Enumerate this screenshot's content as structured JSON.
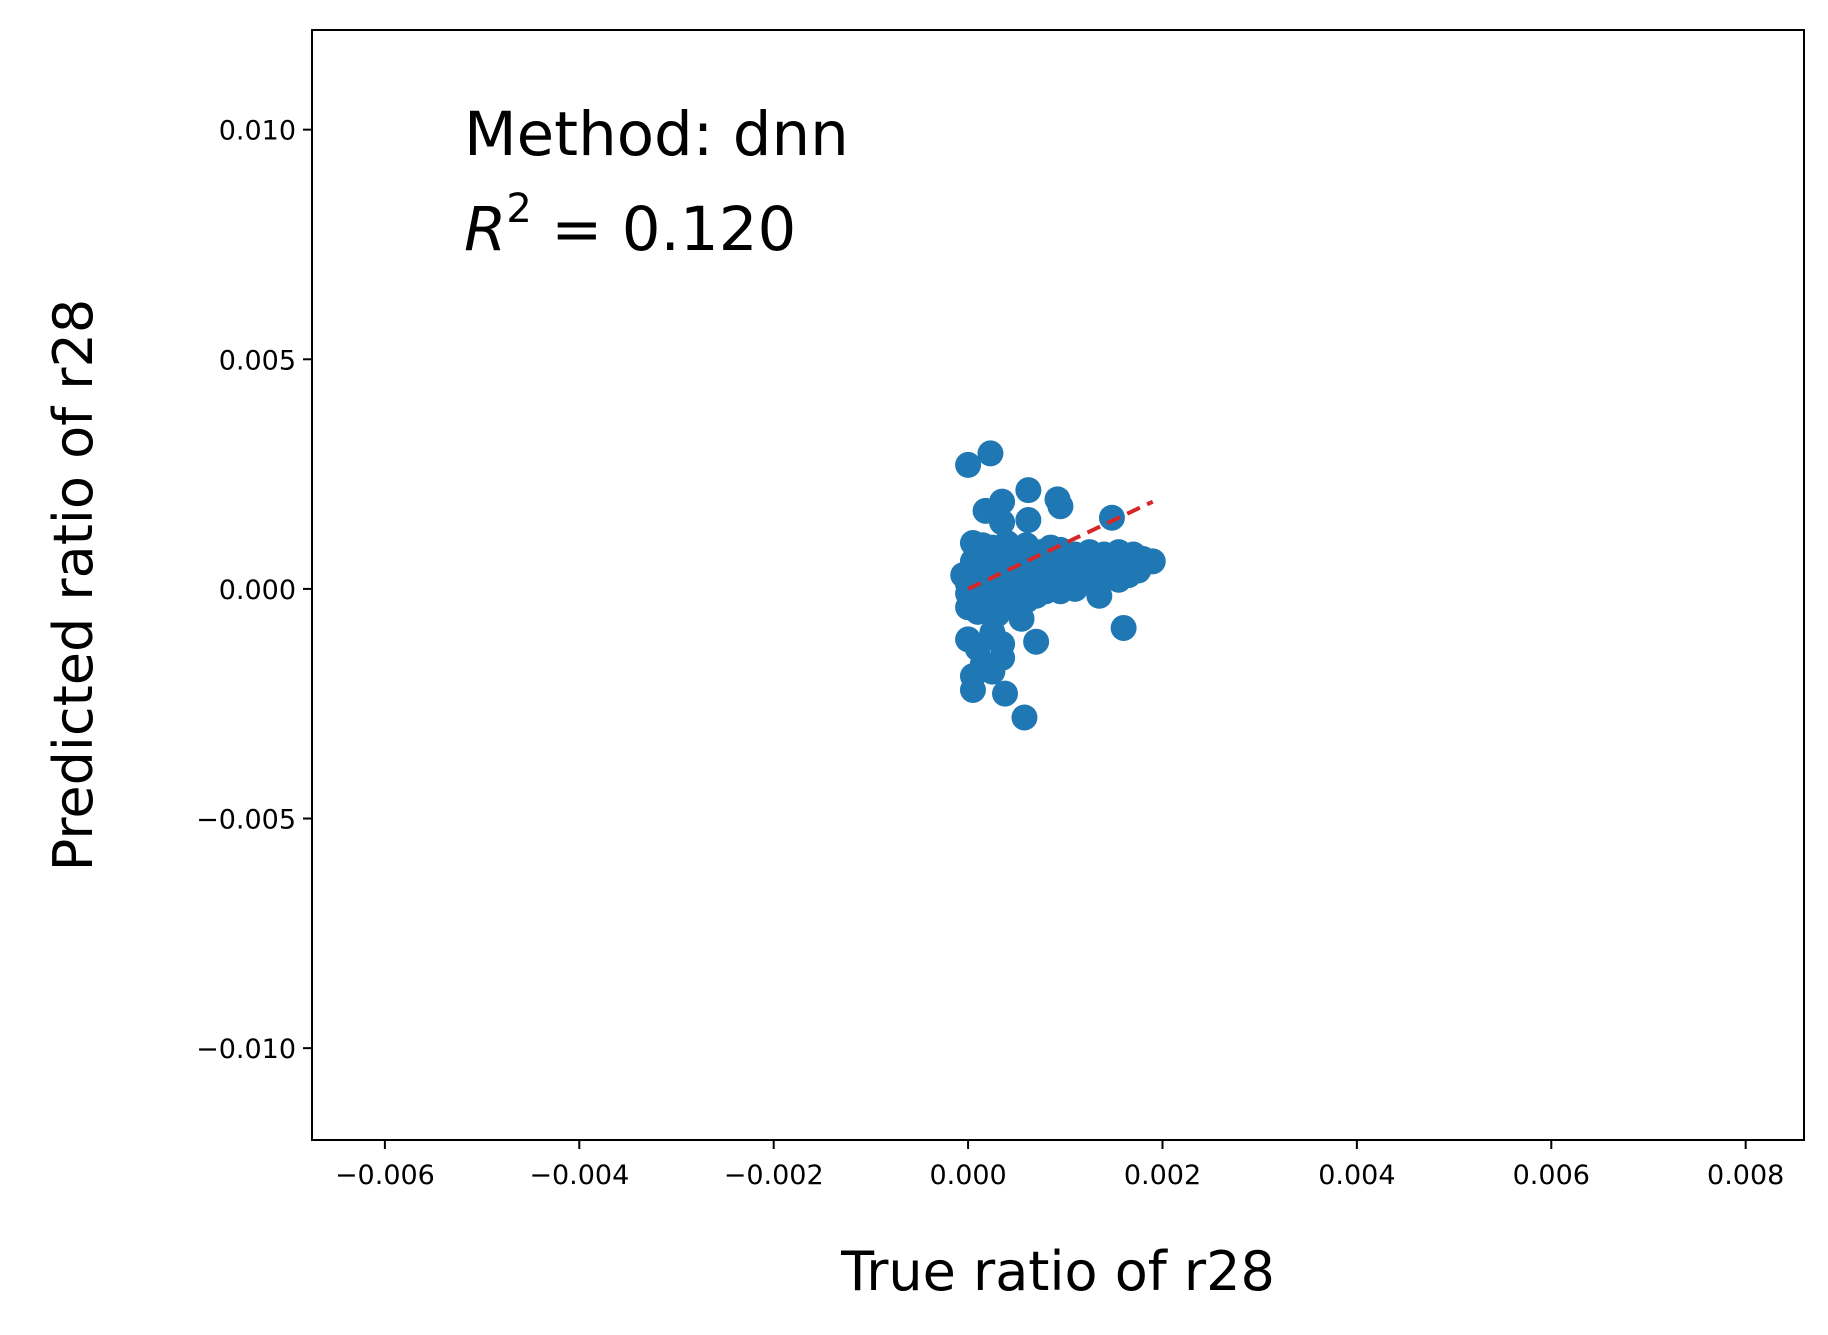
{
  "chart_data": {
    "type": "scatter",
    "annotation": {
      "method_line": "Method: dnn",
      "r2_symbol": "R",
      "r2_exponent": "2",
      "r2_value": " = 0.120"
    },
    "xlabel": "True ratio of r28",
    "ylabel": "Predicted ratio of r28",
    "xlim": [
      -0.00675,
      0.0086
    ],
    "ylim": [
      -0.012,
      0.01217
    ],
    "x_ticks": [
      {
        "value": -0.006,
        "label": "−0.006"
      },
      {
        "value": -0.004,
        "label": "−0.004"
      },
      {
        "value": -0.002,
        "label": "−0.002"
      },
      {
        "value": 0.0,
        "label": "0.000"
      },
      {
        "value": 0.002,
        "label": "0.002"
      },
      {
        "value": 0.004,
        "label": "0.004"
      },
      {
        "value": 0.006,
        "label": "0.006"
      },
      {
        "value": 0.008,
        "label": "0.008"
      }
    ],
    "y_ticks": [
      {
        "value": 0.01,
        "label": "0.010"
      },
      {
        "value": 0.005,
        "label": "0.005"
      },
      {
        "value": 0.0,
        "label": "0.000"
      },
      {
        "value": -0.005,
        "label": "−0.005"
      },
      {
        "value": -0.01,
        "label": "−0.010"
      }
    ],
    "grid": false,
    "series": [
      {
        "color": "#1f77b4",
        "points": [
          [
            0.0,
            0.0027
          ],
          [
            0.00023,
            0.00295
          ],
          [
            0.00035,
            0.0019
          ],
          [
            0.00018,
            0.0017
          ],
          [
            0.00035,
            0.00145
          ],
          [
            0.00062,
            0.00215
          ],
          [
            0.00062,
            0.0015
          ],
          [
            0.00092,
            0.00195
          ],
          [
            0.00095,
            0.0018
          ],
          [
            0.00148,
            0.00155
          ],
          [
            5e-05,
            0.001
          ],
          [
            0.00015,
            0.00095
          ],
          [
            0.00025,
            0.0009
          ],
          [
            0.0004,
            0.001
          ],
          [
            0.0005,
            0.00085
          ],
          [
            0.0006,
            0.00095
          ],
          [
            0.00075,
            0.0008
          ],
          [
            0.00085,
            0.0009
          ],
          [
            0.00095,
            0.00085
          ],
          [
            0.0011,
            0.00075
          ],
          [
            0.00125,
            0.0008
          ],
          [
            0.0014,
            0.00075
          ],
          [
            0.00155,
            0.0008
          ],
          [
            0.0017,
            0.00075
          ],
          [
            0.0018,
            0.00065
          ],
          [
            0.0019,
            0.0006
          ],
          [
            5e-05,
            0.0006
          ],
          [
            0.00015,
            0.0005
          ],
          [
            0.00025,
            0.00065
          ],
          [
            0.00035,
            0.00045
          ],
          [
            0.00045,
            0.0006
          ],
          [
            0.00055,
            0.0004
          ],
          [
            0.00065,
            0.00055
          ],
          [
            0.00075,
            0.0004
          ],
          [
            0.00085,
            0.00055
          ],
          [
            0.00095,
            0.0004
          ],
          [
            0.00105,
            0.00055
          ],
          [
            0.00115,
            0.00035
          ],
          [
            0.00125,
            0.0005
          ],
          [
            0.00135,
            0.00035
          ],
          [
            0.00145,
            0.0005
          ],
          [
            0.00155,
            0.00035
          ],
          [
            0.00165,
            0.0005
          ],
          [
            0.00175,
            0.0004
          ],
          [
            0.0016,
            0.0006
          ],
          [
            0.0014,
            0.00065
          ],
          [
            -5e-05,
            0.0003
          ],
          [
            0.0,
            0.0001
          ],
          [
            5e-05,
            0.00025
          ],
          [
            0.00015,
            0.00015
          ],
          [
            0.00025,
            0.0003
          ],
          [
            0.00035,
            0.00015
          ],
          [
            0.00045,
            0.0003
          ],
          [
            0.00055,
            0.0002
          ],
          [
            0.00065,
            0.0003
          ],
          [
            0.00075,
            0.0002
          ],
          [
            0.00085,
            0.0003
          ],
          [
            0.00095,
            0.0002
          ],
          [
            0.00105,
            0.0003
          ],
          [
            0.00115,
            0.0002
          ],
          [
            0.00125,
            0.0003
          ],
          [
            0.00135,
            0.0002
          ],
          [
            0.00145,
            0.0003
          ],
          [
            0.00155,
            0.0002
          ],
          [
            0.00165,
            0.0003
          ],
          [
            0.0,
            -0.0001
          ],
          [
            0.0001,
            -5e-05
          ],
          [
            0.0002,
            -0.00015
          ],
          [
            0.0003,
            -5e-05
          ],
          [
            0.0004,
            -0.0002
          ],
          [
            0.0005,
            -0.0001
          ],
          [
            0.0006,
            -0.00025
          ],
          [
            0.0007,
            -0.00015
          ],
          [
            0.0008,
            -5e-05
          ],
          [
            0.00095,
            -5e-05
          ],
          [
            0.0011,
            0.0
          ],
          [
            0.00135,
            -0.00015
          ],
          [
            0.0,
            -0.0004
          ],
          [
            0.0001,
            -0.0005
          ],
          [
            0.0002,
            -0.00035
          ],
          [
            0.0003,
            -0.00055
          ],
          [
            0.0005,
            -0.0004
          ],
          [
            0.00055,
            -0.00065
          ],
          [
            0.0,
            -0.0011
          ],
          [
            0.00025,
            -0.00095
          ],
          [
            0.0001,
            -0.0013
          ],
          [
            0.00035,
            -0.0012
          ],
          [
            0.0007,
            -0.00115
          ],
          [
            0.0016,
            -0.00085
          ],
          [
            0.00015,
            -0.00165
          ],
          [
            0.00035,
            -0.0015
          ],
          [
            5e-05,
            -0.0019
          ],
          [
            0.00025,
            -0.0018
          ],
          [
            5e-05,
            -0.0022
          ],
          [
            0.00038,
            -0.00228
          ],
          [
            0.00058,
            -0.0028
          ]
        ]
      }
    ],
    "fit_line": {
      "color": "#d62728",
      "style": "dashed",
      "x": [
        0.0,
        0.0019
      ],
      "y": [
        0.0,
        0.0019
      ]
    }
  }
}
